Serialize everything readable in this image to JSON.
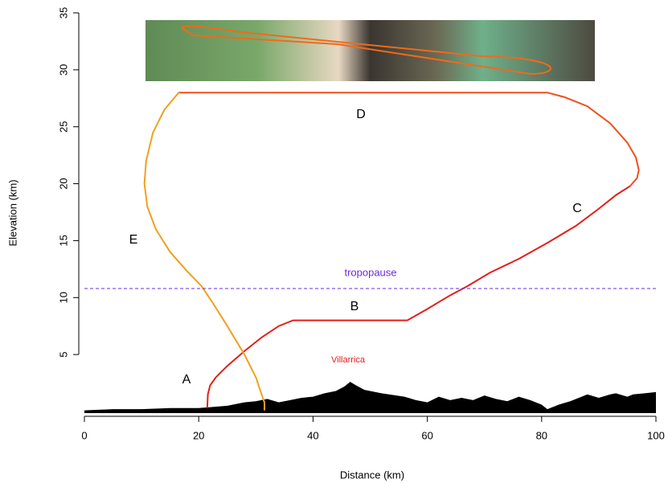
{
  "chart_data": {
    "type": "line",
    "x_label": "Distance (km)",
    "y_label": "Elevation (km)",
    "xlim": [
      0,
      100
    ],
    "xticks": [
      0,
      20,
      40,
      60,
      80,
      100
    ],
    "ylim": [
      0,
      35
    ],
    "yticks": [
      5,
      10,
      15,
      20,
      25,
      30,
      35
    ],
    "reference_line": {
      "value": 10.8,
      "label": "tropopause",
      "color": "#6a2be0"
    },
    "annotations": [
      "A",
      "B",
      "C",
      "D",
      "E",
      "Villarrica"
    ],
    "series": [
      {
        "type": "area",
        "color": "#000000",
        "x": [
          0,
          5,
          10,
          15,
          20,
          25,
          28,
          30,
          32,
          34,
          36,
          38,
          40,
          42,
          44,
          45.5,
          46.5,
          47.5,
          49,
          52,
          56,
          58,
          60,
          62,
          64,
          66,
          68,
          70,
          72,
          74,
          76,
          78,
          80,
          81,
          83,
          85,
          87,
          88,
          90,
          92,
          93,
          95,
          96,
          98,
          100
        ],
        "values": [
          0.1,
          0.2,
          0.2,
          0.3,
          0.3,
          0.5,
          0.8,
          0.9,
          1.1,
          0.8,
          1.0,
          1.2,
          1.3,
          1.6,
          1.8,
          2.2,
          2.6,
          2.3,
          1.9,
          1.6,
          1.3,
          1.0,
          0.8,
          1.3,
          1.0,
          1.2,
          1.0,
          1.4,
          1.1,
          0.9,
          1.3,
          1.0,
          0.6,
          0.2,
          0.6,
          0.9,
          1.3,
          1.5,
          1.2,
          1.5,
          1.6,
          1.3,
          1.5,
          1.6,
          1.7
        ]
      },
      {
        "color": "#e41e1a",
        "x": [
          21.5,
          21.6,
          22,
          23,
          25,
          28,
          31,
          34,
          36.5,
          56.5,
          60,
          64,
          67,
          71,
          76,
          81,
          86,
          90,
          93,
          95.5
        ],
        "values": [
          0.3,
          1.5,
          2.3,
          3.0,
          4.0,
          5.3,
          6.5,
          7.5,
          8,
          8,
          9,
          10.2,
          11,
          12.2,
          13.4,
          14.8,
          16.3,
          17.8,
          19.0,
          19.8
        ]
      },
      {
        "color": "#f04e1e",
        "x": [
          95.5,
          96.7,
          97,
          96.5,
          95,
          92,
          88,
          84,
          81,
          16.5
        ],
        "values": [
          19.8,
          20.5,
          21.2,
          22.3,
          23.6,
          25.3,
          26.8,
          27.6,
          28,
          28
        ]
      },
      {
        "color": "#f2a01c",
        "x": [
          16.5,
          14,
          12,
          10.8,
          10.5,
          11,
          12.5,
          15,
          18,
          20.5,
          22.5,
          25,
          28,
          30,
          31,
          31.5,
          31.5
        ],
        "values": [
          28,
          26.5,
          24.5,
          22,
          20,
          18,
          16,
          14,
          12.3,
          11,
          9.5,
          7.5,
          5,
          3,
          1.5,
          0.8,
          0.1
        ]
      }
    ]
  }
}
